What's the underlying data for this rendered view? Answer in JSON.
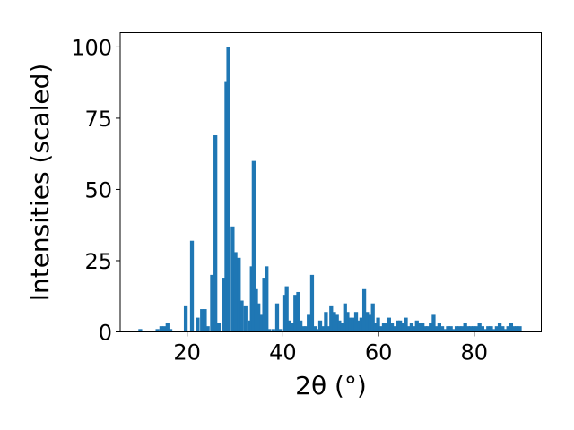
{
  "chart_data": {
    "type": "bar",
    "title": "",
    "xlabel": "2θ (°)",
    "ylabel": "Intensities (scaled)",
    "xlim": [
      6,
      94
    ],
    "ylim": [
      0,
      105
    ],
    "x_ticks": [
      20,
      40,
      60,
      80
    ],
    "y_ticks": [
      0,
      25,
      50,
      75,
      100
    ],
    "bar_color": "#1f77b4",
    "grid": false,
    "legend": "none",
    "series": [
      {
        "x": [
          10.2,
          13.8,
          14.6,
          15.3,
          15.9,
          16.5,
          19.7,
          21.0,
          22.2,
          23.1,
          23.7,
          24.3,
          25.2,
          25.9,
          26.6,
          27.6,
          28.2,
          28.6,
          29.5,
          30.1,
          30.8,
          31.4,
          32.2,
          33.0,
          33.5,
          33.9,
          34.4,
          34.9,
          35.5,
          36.1,
          36.6,
          37.1,
          38.0,
          38.8,
          39.4,
          40.3,
          40.8,
          41.3,
          42.1,
          42.6,
          43.2,
          43.7,
          44.3,
          44.9,
          45.4,
          46.1,
          46.7,
          47.2,
          47.8,
          48.4,
          49.0,
          49.6,
          50.1,
          50.7,
          51.3,
          51.8,
          52.4,
          53.0,
          53.5,
          54.1,
          54.7,
          55.3,
          55.9,
          56.4,
          57.0,
          57.6,
          58.2,
          58.8,
          59.3,
          59.9,
          60.5,
          61.1,
          61.6,
          62.2,
          62.8,
          63.4,
          64.0,
          64.5,
          65.1,
          65.7,
          66.3,
          66.9,
          67.4,
          68.0,
          68.6,
          69.2,
          69.8,
          70.3,
          70.9,
          71.5,
          72.1,
          72.7,
          73.3,
          73.9,
          74.5,
          75.1,
          75.7,
          76.3,
          76.9,
          77.5,
          78.1,
          78.7,
          79.3,
          79.9,
          80.5,
          81.1,
          81.7,
          82.3,
          82.9,
          83.5,
          84.1,
          84.7,
          85.3,
          85.9,
          86.5,
          87.1,
          87.7,
          88.3,
          88.9,
          89.5
        ],
        "values": [
          1,
          1,
          2,
          2,
          3,
          1,
          9,
          32,
          5,
          8,
          8,
          2,
          20,
          69,
          3,
          19,
          88,
          100,
          37,
          28,
          26,
          11,
          9,
          4,
          23,
          60,
          15,
          10,
          6,
          19,
          23,
          1,
          1,
          10,
          1,
          13,
          16,
          4,
          3,
          13,
          14,
          4,
          2,
          2,
          6,
          20,
          2,
          1,
          4,
          2,
          7,
          2,
          9,
          7,
          6,
          4,
          3,
          10,
          7,
          5,
          5,
          7,
          4,
          5,
          15,
          7,
          6,
          10,
          3,
          5,
          2,
          3,
          3,
          5,
          3,
          2,
          4,
          4,
          3,
          5,
          2,
          3,
          2,
          4,
          3,
          3,
          2,
          2,
          3,
          6,
          2,
          3,
          2,
          1,
          2,
          2,
          1,
          2,
          2,
          2,
          3,
          2,
          2,
          2,
          2,
          3,
          2,
          1,
          2,
          2,
          1,
          2,
          3,
          2,
          1,
          2,
          3,
          2,
          2,
          2
        ]
      }
    ]
  }
}
